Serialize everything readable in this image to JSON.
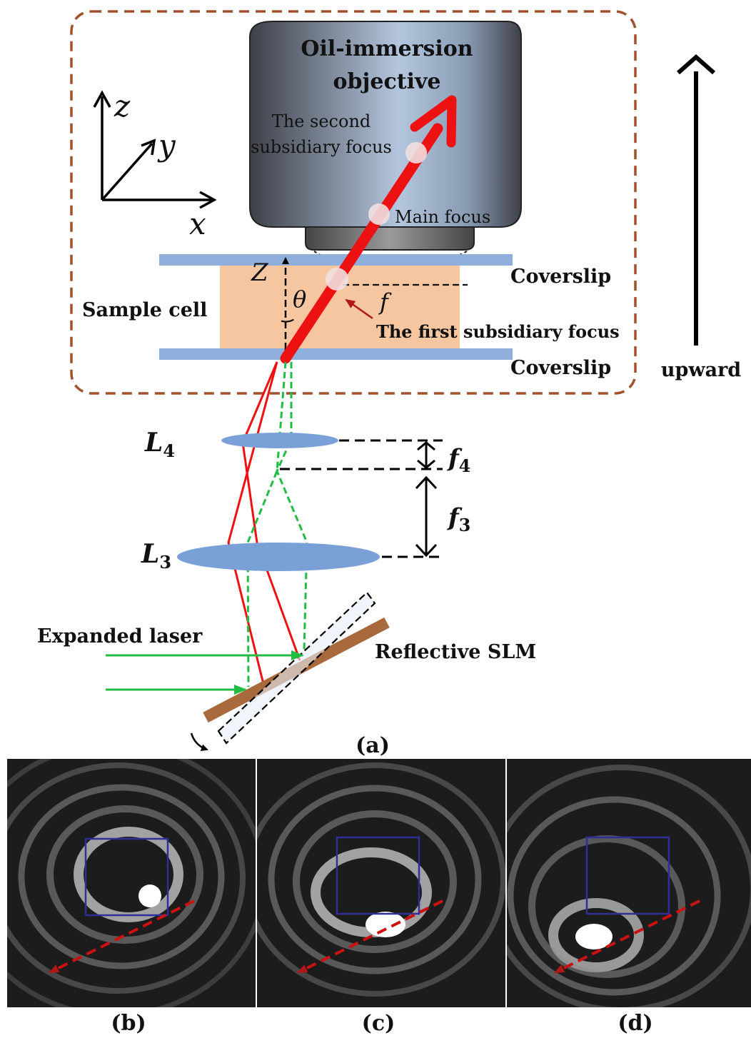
{
  "labels": {
    "objective_line1": "Oil-immersion",
    "objective_line2": "objective",
    "second_focus_line1": "The second",
    "second_focus_line2": "subsidiary focus",
    "main_focus": "Main focus",
    "coverslip_top": "Coverslip",
    "coverslip_bottom": "Coverslip",
    "sample_cell": "Sample cell",
    "first_focus": "The first subsidiary focus",
    "f": "f",
    "z_axis_cell": "Z",
    "theta": "θ",
    "upward": "upward",
    "axis_z": "z",
    "axis_y": "y",
    "axis_x": "x",
    "lens_l4": "L",
    "lens_l4_sub": "4",
    "lens_l3": "L",
    "lens_l3_sub": "3",
    "focal_f4": "f",
    "focal_f4_sub": "4",
    "focal_f3": "f",
    "focal_f3_sub": "3",
    "expanded_laser": "Expanded laser",
    "reflective_slm": "Reflective SLM",
    "panel_a": "(a)",
    "panel_b": "(b)",
    "panel_c": "(c)",
    "panel_d": "(d)"
  },
  "colors": {
    "frame": "#a0522d",
    "objective_dark": "#4a4d55",
    "objective_light": "#b6c6dc",
    "coverslip": "#8fb0dc",
    "sample": "#f5c6a0",
    "red_beam": "#ee1111",
    "green_beam": "#22bb44",
    "lens": "#7aa0d8",
    "slm": "#a86a3c",
    "box": "#2f2f9a",
    "red_dash": "#cc1111"
  }
}
